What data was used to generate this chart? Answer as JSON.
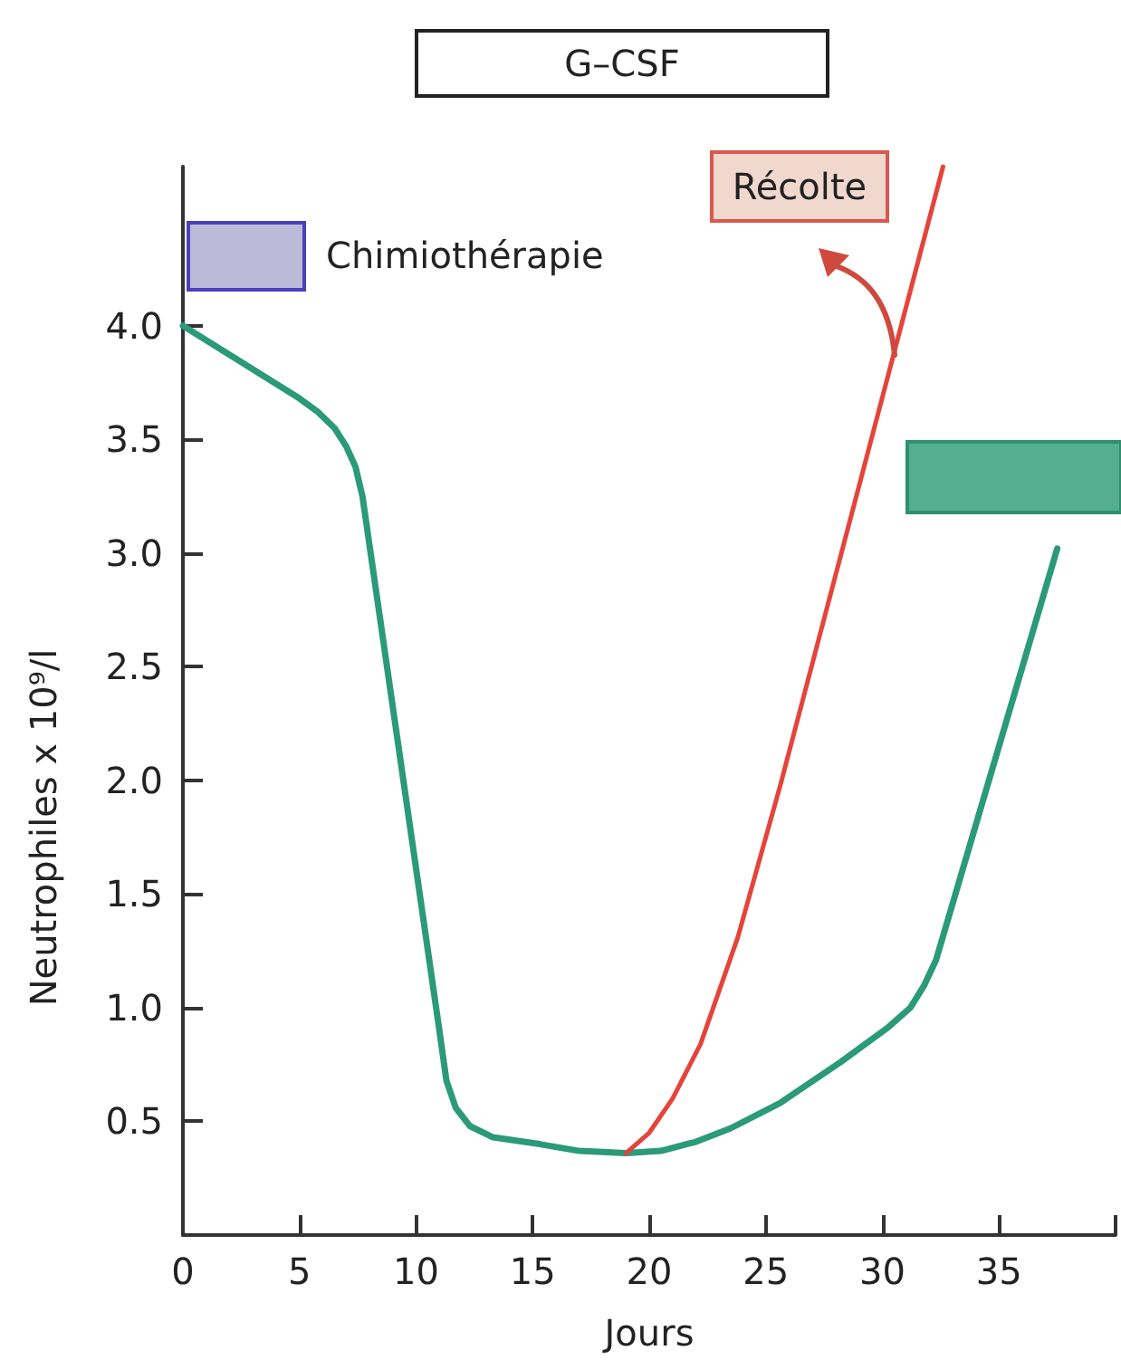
{
  "chart_data": {
    "type": "line",
    "xlabel": "Jours",
    "ylabel": "Neutrophiles x 10⁹/l",
    "annotations": [
      "G–CSF",
      "Chimiothérapie",
      "Récolte"
    ],
    "xlim": [
      0,
      40
    ],
    "xticks": [
      0,
      5,
      10,
      15,
      20,
      25,
      30,
      35,
      {
        "value": 40,
        "label": null
      }
    ],
    "ylim": [
      0,
      4.7
    ],
    "yticks": [
      0.5,
      {
        "value": 1,
        "label": "1.0"
      },
      1.5,
      {
        "value": 2,
        "label": "2.0"
      },
      2.5,
      {
        "value": 3,
        "label": "3.0"
      },
      3.5,
      {
        "value": 4,
        "label": "4.0"
      }
    ],
    "marker": "none",
    "series": [
      {
        "color": "#2b9a78",
        "x": [
          0,
          5.0,
          5.8,
          6.5,
          7.0,
          7.4,
          7.7,
          11.0,
          11.3,
          11.7,
          12.3,
          13.3,
          15.3,
          17.0,
          19.0,
          20.5,
          22.0,
          23.5,
          25.6,
          28.2,
          30.2,
          31.2,
          31.8,
          32.3,
          37.5
        ],
        "values": [
          4.0,
          3.68,
          3.62,
          3.55,
          3.47,
          3.38,
          3.25,
          0.9,
          0.68,
          0.56,
          0.48,
          0.43,
          0.4,
          0.37,
          0.36,
          0.37,
          0.41,
          0.47,
          0.58,
          0.76,
          0.91,
          1.0,
          1.1,
          1.21,
          3.02
        ]
      },
      {
        "color": "#e4443b",
        "x": [
          19.0,
          20.0,
          21.0,
          22.2,
          23.8,
          25.6,
          32.6
        ],
        "values": [
          0.36,
          0.45,
          0.6,
          0.84,
          1.31,
          1.97,
          4.7
        ]
      }
    ]
  }
}
